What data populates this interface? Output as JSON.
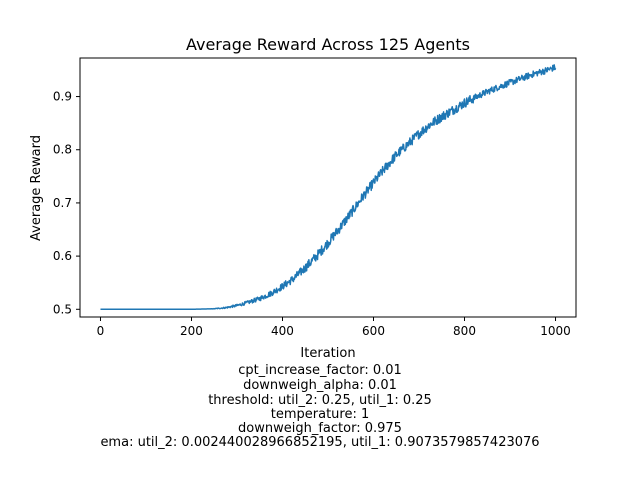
{
  "chart_data": {
    "type": "line",
    "title": "Average Reward Across 125 Agents",
    "xlabel": "Iteration",
    "ylabel": "Average Reward",
    "xlim": [
      -45,
      1045
    ],
    "ylim": [
      0.4855,
      0.9725
    ],
    "xticks": [
      0,
      200,
      400,
      600,
      800,
      1000
    ],
    "yticks": [
      0.5,
      0.6,
      0.7,
      0.8,
      0.9
    ],
    "ytick_labels": [
      "0.5",
      "0.6",
      "0.7",
      "0.8",
      "0.9"
    ],
    "grid": false,
    "legend": "none",
    "color": "#1f77b4",
    "series": [
      {
        "x": [
          0,
          100,
          200,
          250,
          275,
          300,
          325,
          350,
          375,
          400,
          425,
          450,
          475,
          500,
          525,
          550,
          575,
          600,
          625,
          650,
          675,
          700,
          725,
          750,
          775,
          800,
          825,
          850,
          875,
          900,
          925,
          950,
          975,
          1000
        ],
        "values": [
          0.5,
          0.5,
          0.5,
          0.501,
          0.503,
          0.507,
          0.513,
          0.52,
          0.53,
          0.543,
          0.558,
          0.578,
          0.6,
          0.625,
          0.652,
          0.68,
          0.71,
          0.738,
          0.765,
          0.79,
          0.81,
          0.83,
          0.848,
          0.862,
          0.875,
          0.888,
          0.899,
          0.909,
          0.918,
          0.926,
          0.934,
          0.942,
          0.948,
          0.955
        ]
      }
    ]
  },
  "annotations": [
    "cpt_increase_factor: 0.01",
    "downweigh_alpha: 0.01",
    "threshold: util_2: 0.25, util_1: 0.25",
    "temperature: 1",
    "downweigh_factor: 0.975",
    "ema: util_2: 0.002440028966852195, util_1: 0.9073579857423076"
  ]
}
